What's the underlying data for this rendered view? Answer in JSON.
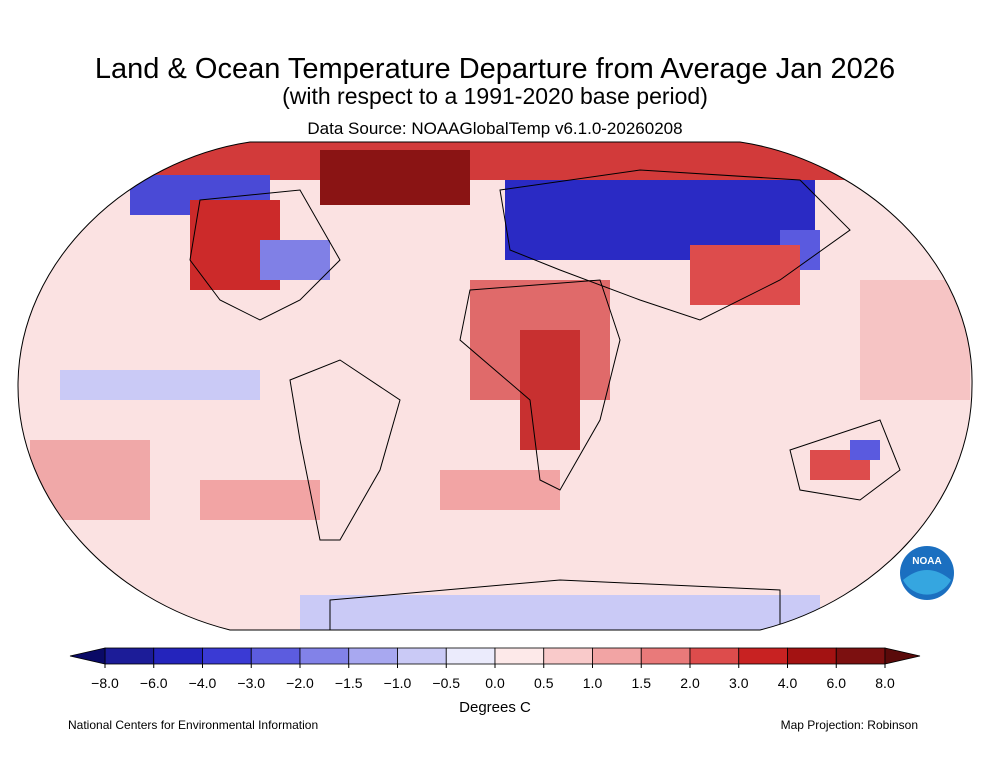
{
  "header": {
    "title": "Land & Ocean Temperature Departure from Average Jan 2026",
    "subtitle": "(with respect to a 1991-2020 base period)",
    "source": "Data Source: NOAAGlobalTemp v6.1.0-20260208"
  },
  "colorbar": {
    "label": "Degrees C",
    "ticks": [
      {
        "value": -8,
        "label": "−8.0"
      },
      {
        "value": -6,
        "label": "−6.0"
      },
      {
        "value": -4,
        "label": "−4.0"
      },
      {
        "value": -3,
        "label": "−3.0"
      },
      {
        "value": -2,
        "label": "−2.0"
      },
      {
        "value": -1.5,
        "label": "−1.5"
      },
      {
        "value": -1,
        "label": "−1.0"
      },
      {
        "value": -0.5,
        "label": "−0.5"
      },
      {
        "value": 0,
        "label": "0.0"
      },
      0.5,
      {
        "value": 1,
        "label": "1.0"
      },
      1.5,
      {
        "value": 2,
        "label": "2.0"
      },
      {
        "value": 3,
        "label": "3.0"
      },
      {
        "value": 4,
        "label": "4.0"
      },
      {
        "value": 6,
        "label": "6.0"
      },
      {
        "value": 8,
        "label": "8.0"
      }
    ],
    "colors": [
      "#1c1c98",
      "#2424bc",
      "#3a3ad4",
      "#5c5cdf",
      "#8282e8",
      "#a8a8f0",
      "#cacaf6",
      "#ebebfc",
      "#fde9e9",
      "#f9caca",
      "#f2a4a4",
      "#e97a7a",
      "#dd4c4c",
      "#c82222",
      "#a31212",
      "#7c1010"
    ],
    "under_color": "#0a0a66",
    "over_color": "#5a0a0a"
  },
  "footer": {
    "left": "National Centers for Environmental Information",
    "right": "Map Projection: Robinson"
  },
  "logo": "NOAA"
}
